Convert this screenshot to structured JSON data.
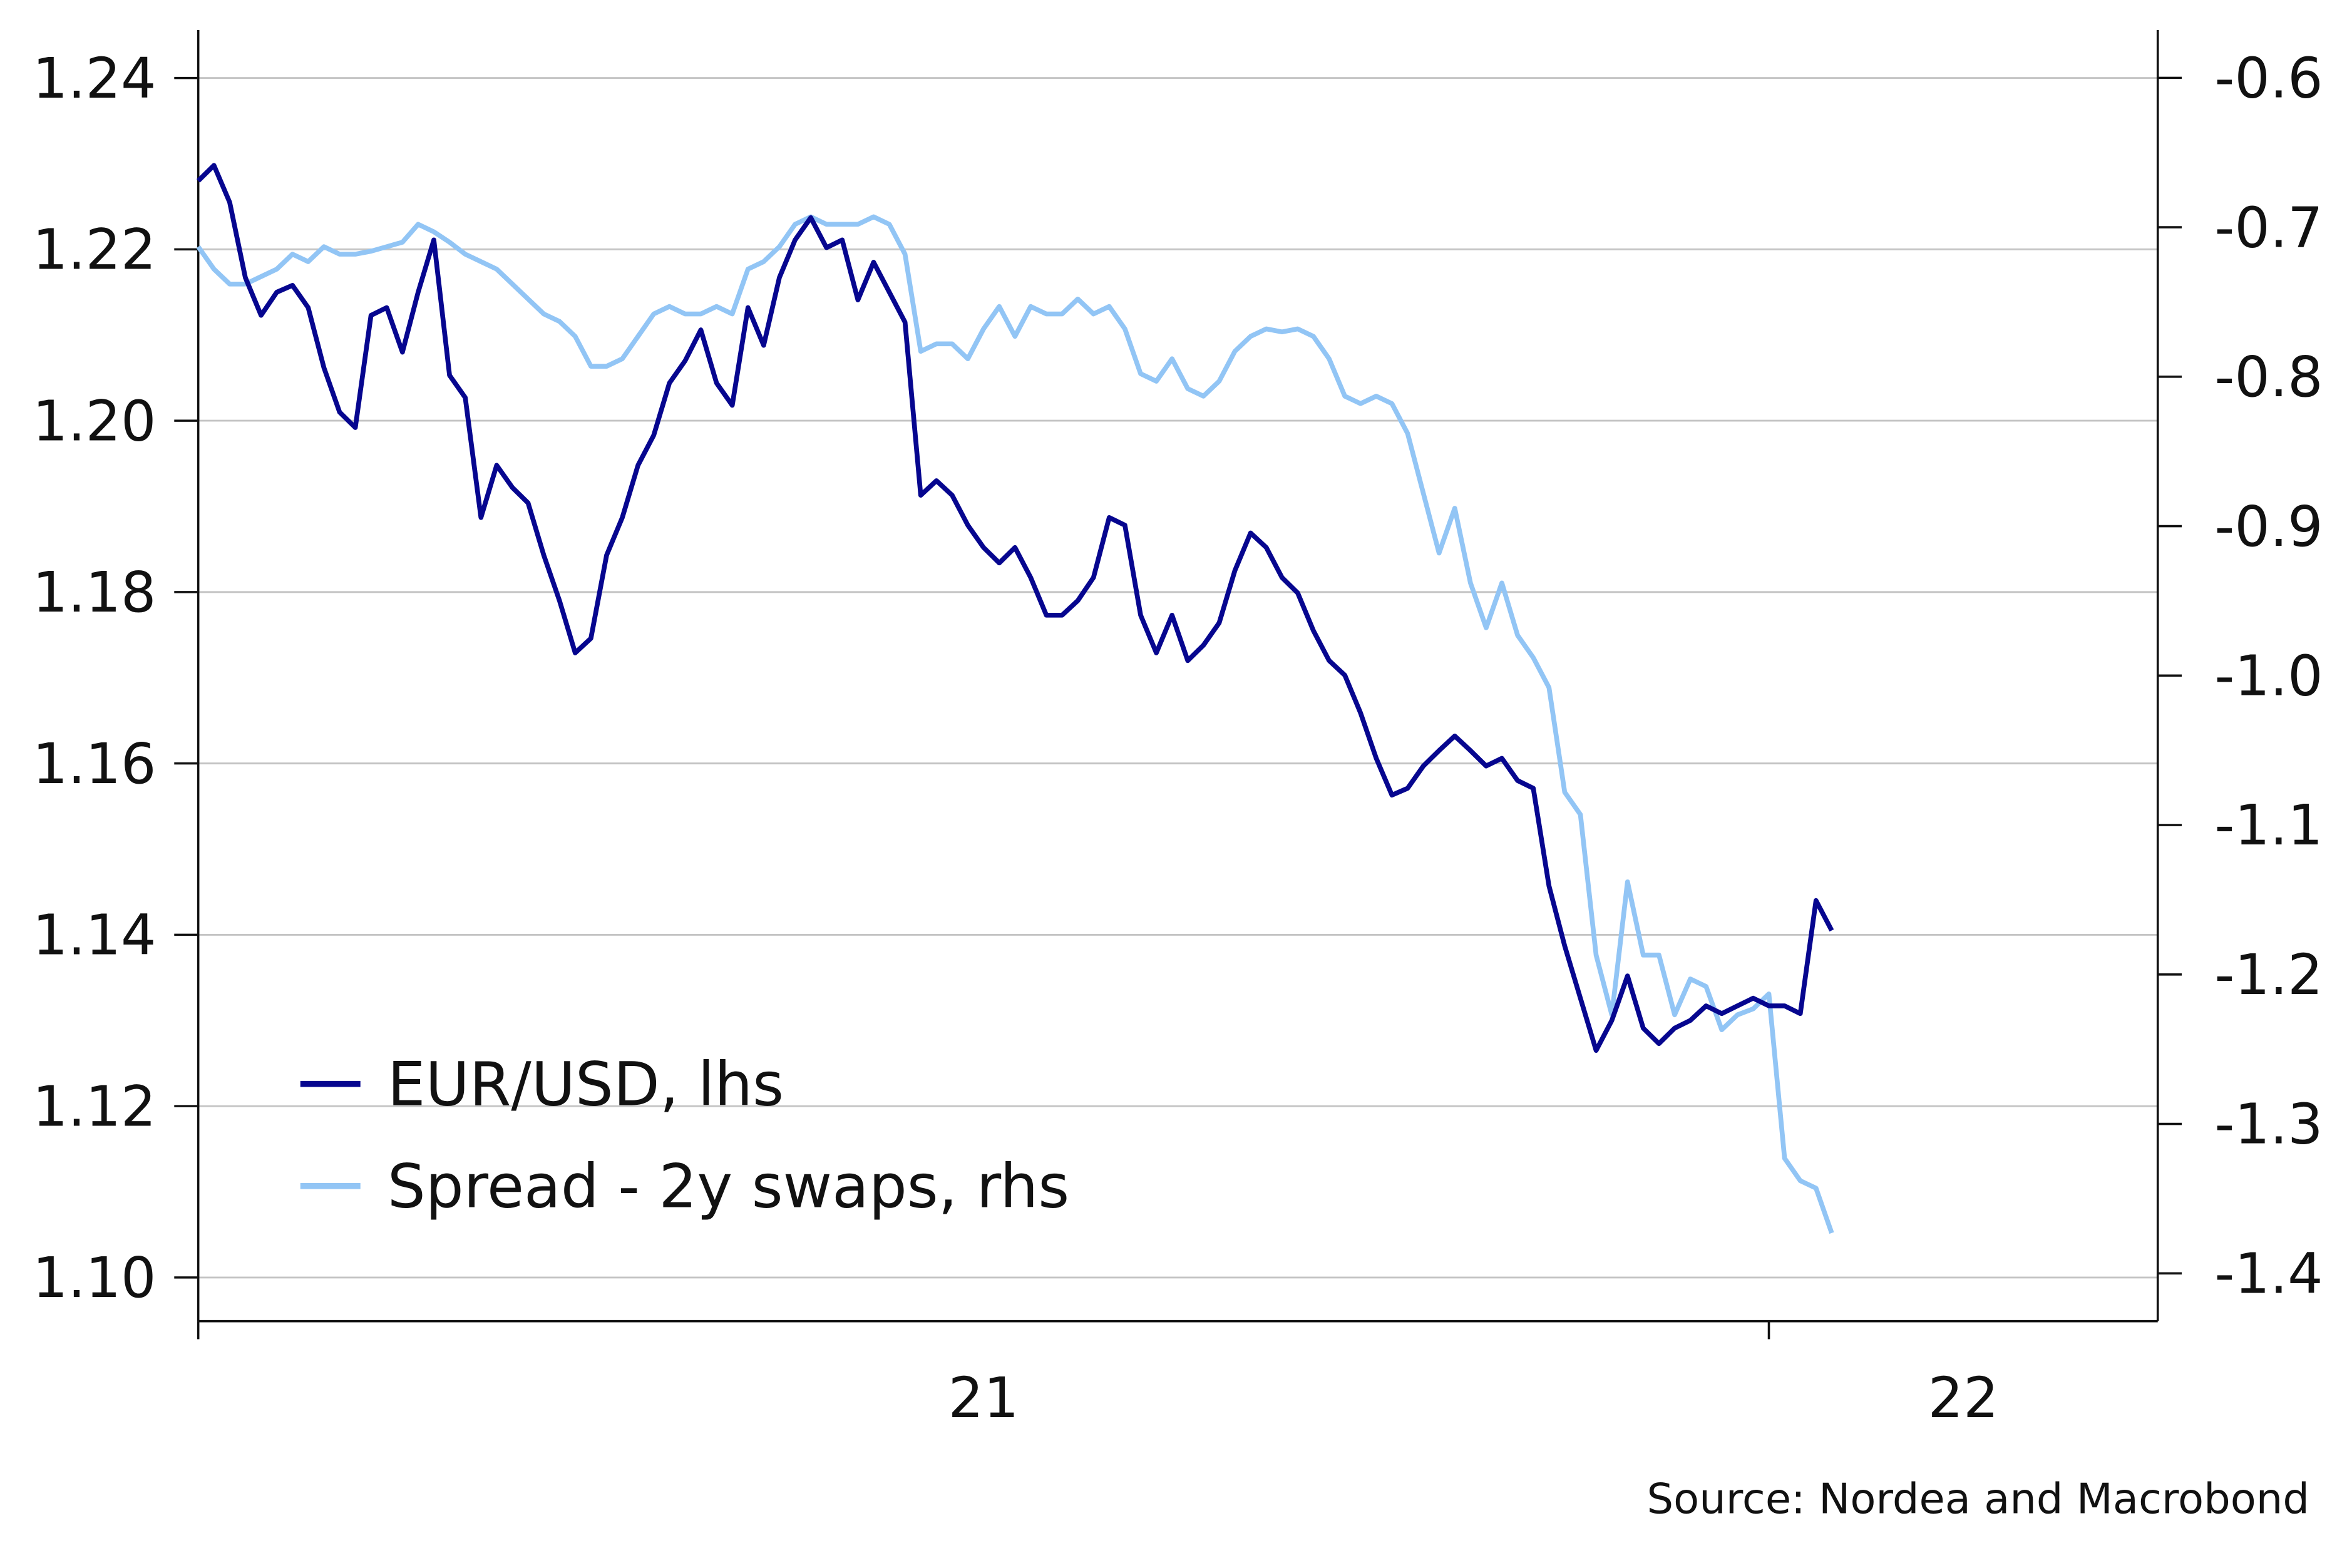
{
  "chart_data": {
    "type": "line",
    "source": "Source: Nordea and Macrobond",
    "x": [
      21.0,
      21.01,
      21.02,
      21.03,
      21.04,
      21.05,
      21.06,
      21.07,
      21.08,
      21.09,
      21.1,
      21.11,
      21.12,
      21.13,
      21.14,
      21.15,
      21.16,
      21.17,
      21.18,
      21.19,
      21.2,
      21.21,
      21.22,
      21.23,
      21.24,
      21.25,
      21.26,
      21.27,
      21.28,
      21.29,
      21.3,
      21.31,
      21.32,
      21.33,
      21.34,
      21.35,
      21.36,
      21.37,
      21.38,
      21.39,
      21.4,
      21.41,
      21.42,
      21.43,
      21.44,
      21.45,
      21.46,
      21.47,
      21.48,
      21.49,
      21.5,
      21.51,
      21.52,
      21.53,
      21.54,
      21.55,
      21.56,
      21.57,
      21.58,
      21.59,
      21.6,
      21.61,
      21.62,
      21.63,
      21.64,
      21.65,
      21.66,
      21.67,
      21.68,
      21.69,
      21.7,
      21.71,
      21.72,
      21.73,
      21.74,
      21.75,
      21.76,
      21.77,
      21.78,
      21.79,
      21.8,
      21.81,
      21.82,
      21.83,
      21.84,
      21.85,
      21.86,
      21.87,
      21.88,
      21.89,
      21.9,
      21.91,
      21.92,
      21.93,
      21.94,
      21.95,
      21.96,
      21.97,
      21.98,
      21.99,
      22.0,
      22.01,
      22.02,
      22.03,
      22.04
    ],
    "series": [
      {
        "name": "EUR/USD, lhs",
        "color": "#06068f",
        "axis": "y",
        "values": [
          1.228,
          1.2298,
          1.2255,
          1.2167,
          1.2123,
          1.215,
          1.2158,
          1.2132,
          1.2062,
          1.201,
          1.1992,
          1.2123,
          1.2132,
          1.208,
          1.215,
          1.2211,
          1.2053,
          1.2027,
          1.1887,
          1.1948,
          1.1922,
          1.1904,
          1.1843,
          1.179,
          1.1729,
          1.1746,
          1.1843,
          1.1887,
          1.1948,
          1.1983,
          1.2044,
          1.207,
          1.2106,
          1.2044,
          1.2018,
          1.2132,
          1.2088,
          1.2167,
          1.2211,
          1.2237,
          1.2202,
          1.2211,
          1.2141,
          1.2185,
          1.215,
          1.2115,
          1.1913,
          1.193,
          1.1913,
          1.1878,
          1.1852,
          1.1834,
          1.1852,
          1.1817,
          1.1773,
          1.1773,
          1.179,
          1.1817,
          1.1887,
          1.1878,
          1.1773,
          1.1729,
          1.1773,
          1.172,
          1.1738,
          1.1764,
          1.1825,
          1.1869,
          1.1852,
          1.1817,
          1.1799,
          1.1755,
          1.172,
          1.1703,
          1.1659,
          1.1606,
          1.1563,
          1.1571,
          1.1597,
          1.1615,
          1.1632,
          1.1615,
          1.1597,
          1.1606,
          1.158,
          1.1571,
          1.1457,
          1.1387,
          1.1326,
          1.1265,
          1.13,
          1.1352,
          1.1291,
          1.1273,
          1.1291,
          1.13,
          1.1317,
          1.1308,
          1.1317,
          1.1326,
          1.1317,
          1.1317,
          1.1308,
          1.144,
          1.1405
        ]
      },
      {
        "name": "Spread - 2y swaps, rhs",
        "color": "#92c5f5",
        "axis": "y2",
        "values": [
          -0.713,
          -0.728,
          -0.738,
          -0.738,
          -0.733,
          -0.728,
          -0.718,
          -0.723,
          -0.713,
          -0.718,
          -0.718,
          -0.716,
          -0.713,
          -0.71,
          -0.698,
          -0.703,
          -0.71,
          -0.718,
          -0.723,
          -0.728,
          -0.738,
          -0.748,
          -0.758,
          -0.763,
          -0.773,
          -0.793,
          -0.793,
          -0.788,
          -0.773,
          -0.758,
          -0.753,
          -0.758,
          -0.758,
          -0.753,
          -0.758,
          -0.728,
          -0.723,
          -0.713,
          -0.698,
          -0.693,
          -0.698,
          -0.698,
          -0.698,
          -0.693,
          -0.698,
          -0.718,
          -0.783,
          -0.778,
          -0.778,
          -0.788,
          -0.768,
          -0.753,
          -0.773,
          -0.753,
          -0.758,
          -0.758,
          -0.748,
          -0.758,
          -0.753,
          -0.768,
          -0.798,
          -0.803,
          -0.788,
          -0.808,
          -0.813,
          -0.803,
          -0.783,
          -0.773,
          -0.768,
          -0.77,
          -0.768,
          -0.773,
          -0.788,
          -0.813,
          -0.818,
          -0.813,
          -0.818,
          -0.838,
          -0.878,
          -0.918,
          -0.888,
          -0.938,
          -0.968,
          -0.938,
          -0.973,
          -0.988,
          -1.008,
          -1.078,
          -1.093,
          -1.187,
          -1.227,
          -1.138,
          -1.187,
          -1.187,
          -1.227,
          -1.203,
          -1.208,
          -1.237,
          -1.227,
          -1.223,
          -1.213,
          -1.323,
          -1.338,
          -1.343,
          -1.373
        ]
      }
    ],
    "xlim": [
      21,
      22.2476
    ],
    "xticks": [
      {
        "value": 21,
        "label": "21"
      },
      {
        "value": 22,
        "label": "22"
      }
    ],
    "ylim": [
      1.0949,
      1.2456
    ],
    "yticks": [
      {
        "value": 1.1,
        "label": "1.10"
      },
      1.12,
      1.14,
      1.16,
      1.18,
      {
        "value": 1.2,
        "label": "1.20"
      },
      1.22,
      1.24
    ],
    "y2lim": [
      -1.432,
      -0.568
    ],
    "y2ticks": [
      -1.4,
      -1.3,
      -1.2,
      -1.1,
      {
        "value": -1.0,
        "label": "-1.0"
      },
      -0.9,
      -0.8,
      -0.7,
      -0.6
    ],
    "grid": true,
    "legend": "lower left"
  }
}
